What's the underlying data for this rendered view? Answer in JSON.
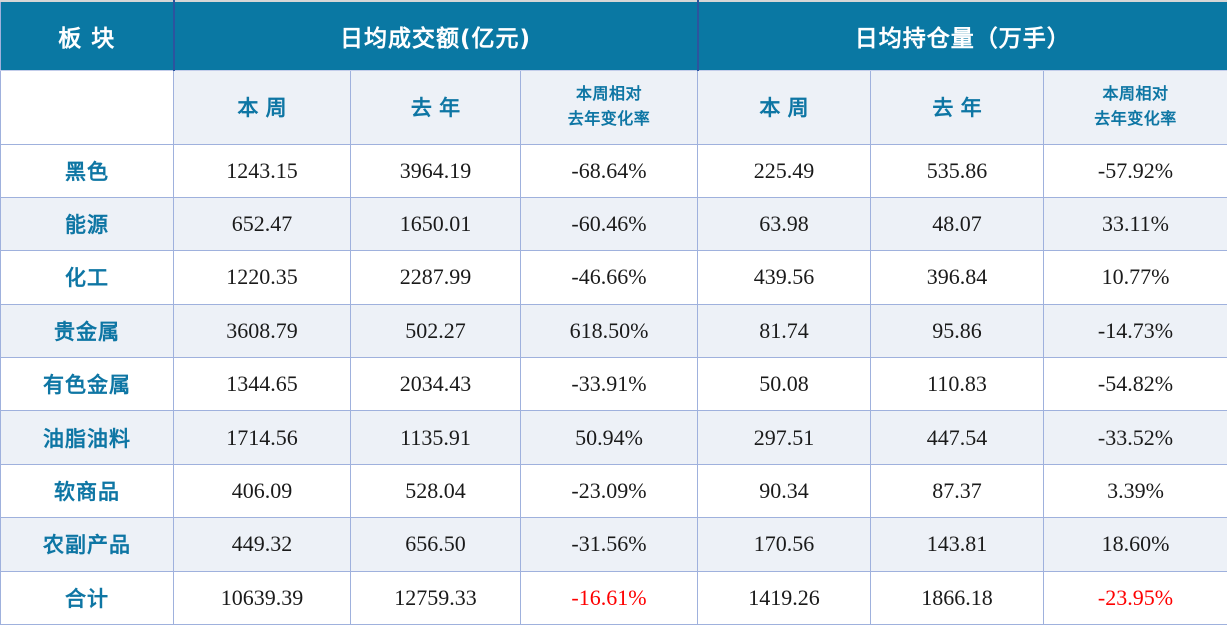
{
  "header": {
    "sector": "板 块",
    "group1": "日均成交额(亿元)",
    "group2": "日均持仓量（万手）",
    "week": "本 周",
    "last_year": "去 年",
    "change_line1": "本周相对",
    "change_line2": "去年变化率"
  },
  "colors": {
    "header_bg": "#0a78a3",
    "header_text": "#ffffff",
    "accent_text": "#0e76a4",
    "negative_total": "#fe0000",
    "row_alt_bg": "#edf1f7",
    "grid_line": "#9fb1dd",
    "header_divider": "#2d549e",
    "top_edge": "#d6d6d6",
    "body_text": "#1a1a1a"
  },
  "chart_data": {
    "type": "table",
    "title": "",
    "row_header": "板 块",
    "groups": [
      {
        "title": "日均成交额(亿元)",
        "columns": [
          "本 周",
          "去 年",
          "本周相对去年变化率"
        ]
      },
      {
        "title": "日均持仓量（万手）",
        "columns": [
          "本 周",
          "去 年",
          "本周相对去年变化率"
        ]
      }
    ],
    "rows": [
      {
        "label": "黑色",
        "cells": [
          "1243.15",
          "3964.19",
          "-68.64%",
          "225.49",
          "535.86",
          "-57.92%"
        ],
        "red_cells": []
      },
      {
        "label": "能源",
        "cells": [
          "652.47",
          "1650.01",
          "-60.46%",
          "63.98",
          "48.07",
          "33.11%"
        ],
        "red_cells": []
      },
      {
        "label": "化工",
        "cells": [
          "1220.35",
          "2287.99",
          "-46.66%",
          "439.56",
          "396.84",
          "10.77%"
        ],
        "red_cells": []
      },
      {
        "label": "贵金属",
        "cells": [
          "3608.79",
          "502.27",
          "618.50%",
          "81.74",
          "95.86",
          "-14.73%"
        ],
        "red_cells": []
      },
      {
        "label": "有色金属",
        "cells": [
          "1344.65",
          "2034.43",
          "-33.91%",
          "50.08",
          "110.83",
          "-54.82%"
        ],
        "red_cells": []
      },
      {
        "label": "油脂油料",
        "cells": [
          "1714.56",
          "1135.91",
          "50.94%",
          "297.51",
          "447.54",
          "-33.52%"
        ],
        "red_cells": []
      },
      {
        "label": "软商品",
        "cells": [
          "406.09",
          "528.04",
          "-23.09%",
          "90.34",
          "87.37",
          "3.39%"
        ],
        "red_cells": []
      },
      {
        "label": "农副产品",
        "cells": [
          "449.32",
          "656.50",
          "-31.56%",
          "170.56",
          "143.81",
          "18.60%"
        ],
        "red_cells": []
      },
      {
        "label": "合计",
        "cells": [
          "10639.39",
          "12759.33",
          "-16.61%",
          "1419.26",
          "1866.18",
          "-23.95%"
        ],
        "red_cells": [
          2,
          5
        ]
      }
    ]
  }
}
